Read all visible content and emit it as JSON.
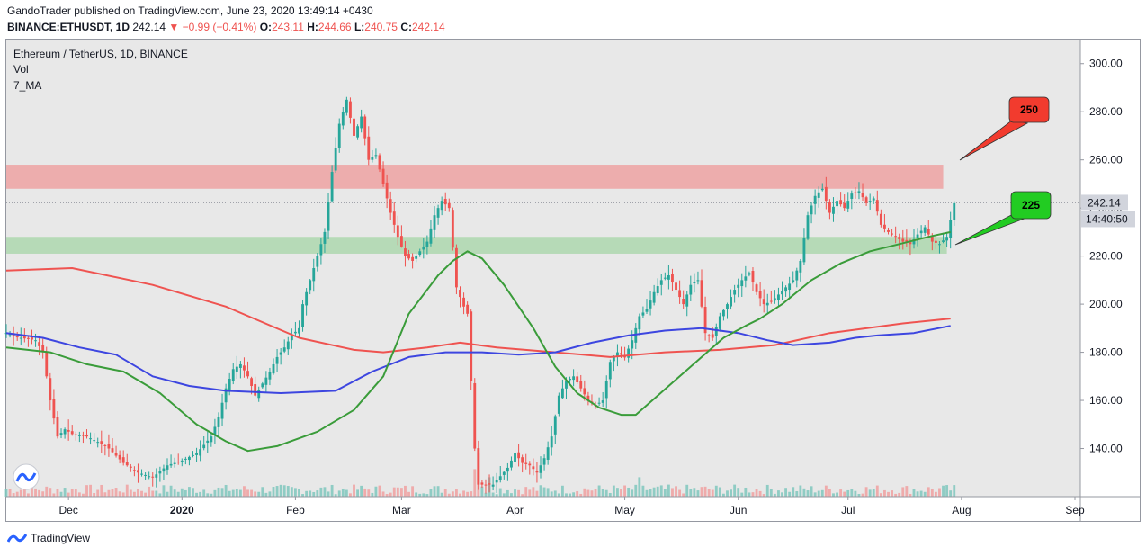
{
  "header": {
    "line1": "GandoTrader published on TradingView.com, June 23, 2020 13:49:14 +0430",
    "symbol": "BINANCE:ETHUSDT, 1D",
    "last": "242.14",
    "change": "−0.99 (−0.41%)",
    "o_label": "O:",
    "o": "243.11",
    "h_label": "H:",
    "h": "244.66",
    "l_label": "L:",
    "l": "240.75",
    "c_label": "C:",
    "c": "242.14"
  },
  "legend": {
    "title": "Ethereum / TetherUS, 1D, BINANCE",
    "vol": "Vol",
    "ma": "7_MA"
  },
  "footer": {
    "brand": "TradingView"
  },
  "chart_data": {
    "type": "candlestick",
    "x_ticks": [
      "Dec",
      "2020",
      "Feb",
      "Mar",
      "Apr",
      "May",
      "Jun",
      "Jul",
      "Aug",
      "Sep"
    ],
    "x_tick_positions": [
      {
        "label": "Dec",
        "day": 17
      },
      {
        "label": "2020",
        "day": 48
      },
      {
        "label": "Feb",
        "day": 79
      },
      {
        "label": "Mar",
        "day": 108
      },
      {
        "label": "Apr",
        "day": 139
      },
      {
        "label": "May",
        "day": 169
      },
      {
        "label": "Jun",
        "day": 200
      },
      {
        "label": "Jul",
        "day": 230
      },
      {
        "label": "Aug",
        "day": 261
      },
      {
        "label": "Sep",
        "day": 292
      }
    ],
    "y_ticks": [
      "300.00",
      "280.00",
      "260.00",
      "240.00",
      "220.00",
      "200.00",
      "180.00",
      "160.00",
      "140.00"
    ],
    "ylim": [
      120,
      310
    ],
    "xlim_days": [
      0,
      292
    ],
    "price_marker": {
      "value": 242.14,
      "label": "242.14",
      "countdown": "14:40:50"
    },
    "zones": [
      {
        "name": "resistance",
        "from": 248,
        "to": 258,
        "color": "#ef9a9a"
      },
      {
        "name": "support",
        "from": 221,
        "to": 228,
        "color": "#a5d6a7"
      }
    ],
    "callouts": [
      {
        "label": "250",
        "color": "#f23b2e",
        "target_price": 250
      },
      {
        "label": "225",
        "color": "#22cc22",
        "target_price": 225
      }
    ],
    "close_path": [
      [
        0,
        188
      ],
      [
        4,
        186
      ],
      [
        8,
        185
      ],
      [
        10,
        180
      ],
      [
        12,
        160
      ],
      [
        14,
        145
      ],
      [
        16,
        148
      ],
      [
        18,
        146
      ],
      [
        22,
        145
      ],
      [
        26,
        142
      ],
      [
        28,
        140
      ],
      [
        32,
        134
      ],
      [
        36,
        130
      ],
      [
        40,
        128
      ],
      [
        44,
        133
      ],
      [
        48,
        135
      ],
      [
        52,
        138
      ],
      [
        56,
        145
      ],
      [
        58,
        153
      ],
      [
        60,
        165
      ],
      [
        62,
        173
      ],
      [
        64,
        175
      ],
      [
        66,
        170
      ],
      [
        68,
        162
      ],
      [
        70,
        167
      ],
      [
        72,
        172
      ],
      [
        74,
        178
      ],
      [
        76,
        182
      ],
      [
        78,
        187
      ],
      [
        80,
        190
      ],
      [
        81,
        200
      ],
      [
        83,
        210
      ],
      [
        85,
        220
      ],
      [
        87,
        230
      ],
      [
        89,
        255
      ],
      [
        91,
        275
      ],
      [
        93,
        285
      ],
      [
        95,
        270
      ],
      [
        97,
        278
      ],
      [
        99,
        260
      ],
      [
        101,
        262
      ],
      [
        103,
        250
      ],
      [
        105,
        238
      ],
      [
        107,
        228
      ],
      [
        109,
        220
      ],
      [
        111,
        218
      ],
      [
        113,
        222
      ],
      [
        115,
        226
      ],
      [
        117,
        237
      ],
      [
        119,
        243
      ],
      [
        121,
        240
      ],
      [
        123,
        207
      ],
      [
        125,
        199
      ],
      [
        126,
        196
      ],
      [
        127,
        168
      ],
      [
        128,
        140
      ],
      [
        129,
        125
      ],
      [
        133,
        125
      ],
      [
        137,
        132
      ],
      [
        139,
        138
      ],
      [
        141,
        134
      ],
      [
        143,
        133
      ],
      [
        145,
        130
      ],
      [
        147,
        136
      ],
      [
        149,
        145
      ],
      [
        151,
        162
      ],
      [
        153,
        168
      ],
      [
        155,
        170
      ],
      [
        157,
        165
      ],
      [
        159,
        160
      ],
      [
        161,
        158
      ],
      [
        163,
        160
      ],
      [
        165,
        176
      ],
      [
        167,
        180
      ],
      [
        169,
        178
      ],
      [
        171,
        185
      ],
      [
        173,
        195
      ],
      [
        175,
        198
      ],
      [
        177,
        205
      ],
      [
        179,
        210
      ],
      [
        181,
        212
      ],
      [
        183,
        206
      ],
      [
        185,
        200
      ],
      [
        187,
        208
      ],
      [
        189,
        210
      ],
      [
        191,
        188
      ],
      [
        193,
        186
      ],
      [
        195,
        195
      ],
      [
        197,
        200
      ],
      [
        199,
        206
      ],
      [
        201,
        210
      ],
      [
        203,
        213
      ],
      [
        205,
        205
      ],
      [
        207,
        200
      ],
      [
        209,
        201
      ],
      [
        211,
        204
      ],
      [
        213,
        207
      ],
      [
        215,
        210
      ],
      [
        217,
        218
      ],
      [
        219,
        237
      ],
      [
        221,
        245
      ],
      [
        223,
        248
      ],
      [
        225,
        238
      ],
      [
        227,
        243
      ],
      [
        229,
        240
      ],
      [
        231,
        246
      ],
      [
        233,
        247
      ],
      [
        235,
        242
      ],
      [
        237,
        244
      ],
      [
        239,
        233
      ],
      [
        241,
        230
      ],
      [
        243,
        228
      ],
      [
        245,
        226
      ],
      [
        247,
        225
      ],
      [
        249,
        229
      ],
      [
        251,
        232
      ],
      [
        253,
        226
      ],
      [
        255,
        225
      ],
      [
        257,
        228
      ],
      [
        259,
        242
      ]
    ],
    "volume_bars": [
      {
        "day": 129,
        "value": 27
      },
      {
        "day": 128,
        "value": 17
      },
      {
        "day": 173,
        "value": 12
      },
      {
        "day": 132,
        "value": 12
      }
    ],
    "series": [
      {
        "name": "MA (red)",
        "color": "#ef5350",
        "points": [
          [
            0,
            214
          ],
          [
            18,
            215
          ],
          [
            40,
            208
          ],
          [
            60,
            199
          ],
          [
            80,
            186
          ],
          [
            95,
            181
          ],
          [
            103,
            180
          ],
          [
            115,
            182
          ],
          [
            124,
            184
          ],
          [
            134,
            182
          ],
          [
            150,
            180
          ],
          [
            165,
            178
          ],
          [
            180,
            180
          ],
          [
            195,
            181
          ],
          [
            210,
            183
          ],
          [
            225,
            188
          ],
          [
            245,
            192
          ],
          [
            258,
            194
          ]
        ]
      },
      {
        "name": "MA (blue)",
        "color": "#3d46e0",
        "points": [
          [
            0,
            188
          ],
          [
            10,
            186
          ],
          [
            20,
            182
          ],
          [
            30,
            179
          ],
          [
            40,
            170
          ],
          [
            50,
            166
          ],
          [
            60,
            164
          ],
          [
            75,
            163
          ],
          [
            90,
            164
          ],
          [
            100,
            172
          ],
          [
            110,
            178
          ],
          [
            120,
            180
          ],
          [
            130,
            180
          ],
          [
            140,
            179
          ],
          [
            150,
            180
          ],
          [
            160,
            184
          ],
          [
            170,
            187
          ],
          [
            180,
            189
          ],
          [
            190,
            190
          ],
          [
            200,
            188
          ],
          [
            208,
            185
          ],
          [
            215,
            183
          ],
          [
            225,
            184
          ],
          [
            232,
            186
          ],
          [
            238,
            187
          ],
          [
            248,
            188
          ],
          [
            258,
            191
          ]
        ]
      },
      {
        "name": "MA (green)",
        "color": "#3a9c3a",
        "points": [
          [
            0,
            182
          ],
          [
            12,
            180
          ],
          [
            22,
            175
          ],
          [
            32,
            172
          ],
          [
            42,
            163
          ],
          [
            52,
            150
          ],
          [
            60,
            143
          ],
          [
            66,
            139
          ],
          [
            74,
            141
          ],
          [
            85,
            147
          ],
          [
            95,
            156
          ],
          [
            103,
            170
          ],
          [
            110,
            196
          ],
          [
            118,
            212
          ],
          [
            122,
            218
          ],
          [
            126,
            222
          ],
          [
            130,
            219
          ],
          [
            136,
            208
          ],
          [
            144,
            190
          ],
          [
            150,
            174
          ],
          [
            156,
            163
          ],
          [
            162,
            157
          ],
          [
            168,
            154
          ],
          [
            172,
            154
          ],
          [
            178,
            162
          ],
          [
            184,
            170
          ],
          [
            190,
            178
          ],
          [
            196,
            186
          ],
          [
            202,
            191
          ],
          [
            206,
            194
          ],
          [
            212,
            200
          ],
          [
            220,
            210
          ],
          [
            228,
            217
          ],
          [
            236,
            222
          ],
          [
            244,
            225
          ],
          [
            252,
            228
          ],
          [
            258,
            230
          ]
        ]
      }
    ]
  }
}
